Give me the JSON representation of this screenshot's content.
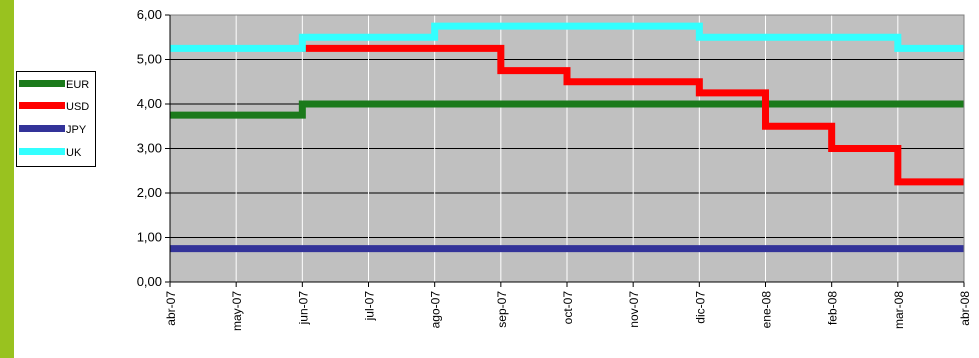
{
  "chart_data": {
    "type": "line",
    "step": true,
    "x": [
      "abr-07",
      "may-07",
      "jun-07",
      "jul-07",
      "ago-07",
      "sep-07",
      "oct-07",
      "nov-07",
      "dic-07",
      "ene-08",
      "feb-08",
      "mar-08",
      "abr-08"
    ],
    "ylim": [
      0,
      6
    ],
    "yticks": [
      "0,00",
      "1,00",
      "2,00",
      "3,00",
      "4,00",
      "5,00",
      "6,00"
    ],
    "ytick_values": [
      0,
      1,
      2,
      3,
      4,
      5,
      6
    ],
    "grid": true,
    "plot_background": "#c0c0c0",
    "legend_position": "left",
    "series": [
      {
        "name": "EUR",
        "color": "#1b7a1b",
        "values": [
          3.75,
          3.75,
          4.0,
          4.0,
          4.0,
          4.0,
          4.0,
          4.0,
          4.0,
          4.0,
          4.0,
          4.0,
          4.0
        ]
      },
      {
        "name": "USD",
        "color": "#ff0000",
        "values": [
          null,
          null,
          5.25,
          5.25,
          5.25,
          4.75,
          4.5,
          4.5,
          4.25,
          3.5,
          3.0,
          2.25,
          2.25
        ]
      },
      {
        "name": "JPY",
        "color": "#333399",
        "values": [
          0.75,
          0.75,
          0.75,
          0.75,
          0.75,
          0.75,
          0.75,
          0.75,
          0.75,
          0.75,
          0.75,
          0.75,
          0.75
        ]
      },
      {
        "name": "UK",
        "color": "#33ffff",
        "values": [
          5.25,
          5.25,
          5.5,
          5.5,
          5.75,
          5.75,
          5.75,
          5.75,
          5.5,
          5.5,
          5.5,
          5.25,
          5.25
        ]
      }
    ]
  }
}
